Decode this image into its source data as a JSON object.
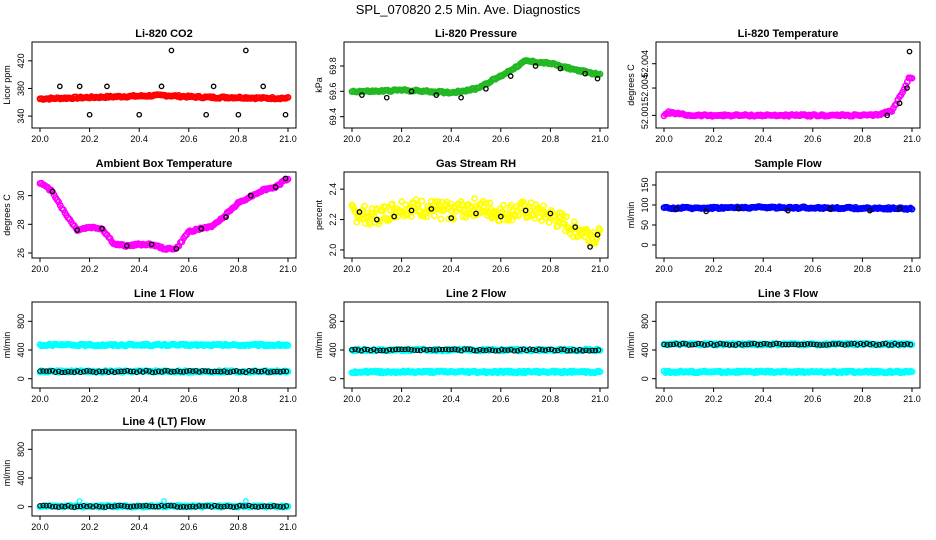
{
  "page_title": "SPL_070820  2.5 Min. Ave. Diagnostics",
  "chart_data": [
    {
      "type": "scatter",
      "title": "Li-820 CO2",
      "xlabel": "",
      "ylabel": "Licor ppm",
      "xlim": [
        20.0,
        21.0
      ],
      "ylim": [
        330,
        440
      ],
      "xticks": [
        "20.0",
        "20.2",
        "20.4",
        "20.6",
        "20.8",
        "21.0"
      ],
      "yticks": [
        "340",
        "380",
        "420"
      ],
      "series": [
        {
          "name": "line averages",
          "color": "#ff0000",
          "style": "dense",
          "x": [
            20.0,
            20.1,
            20.2,
            20.3,
            20.4,
            20.5,
            20.6,
            20.7,
            20.8,
            20.9,
            21.0
          ],
          "y": [
            365,
            366,
            367,
            368,
            369,
            370,
            368,
            367,
            367,
            366,
            366
          ]
        },
        {
          "name": "reference",
          "color": "#000000",
          "style": "sparse",
          "x": [
            20.08,
            20.16,
            20.2,
            20.27,
            20.4,
            20.49,
            20.53,
            20.67,
            20.7,
            20.8,
            20.83,
            20.9,
            20.99
          ],
          "y": [
            383,
            383,
            342,
            383,
            342,
            383,
            435,
            342,
            383,
            342,
            435,
            383,
            342
          ]
        }
      ]
    },
    {
      "type": "scatter",
      "title": "Li-820 Pressure",
      "xlabel": "",
      "ylabel": "kPa",
      "xlim": [
        20.0,
        21.0
      ],
      "ylim": [
        69.35,
        69.95
      ],
      "xticks": [
        "20.0",
        "20.2",
        "20.4",
        "20.6",
        "20.8",
        "21.0"
      ],
      "yticks": [
        "69.4",
        "69.6",
        "69.8"
      ],
      "series": [
        {
          "name": "line averages",
          "color": "#22b822",
          "style": "dense",
          "x": [
            20.0,
            20.1,
            20.2,
            20.3,
            20.4,
            20.5,
            20.6,
            20.7,
            20.8,
            20.9,
            21.0
          ],
          "y": [
            69.6,
            69.6,
            69.61,
            69.6,
            69.59,
            69.62,
            69.72,
            69.84,
            69.82,
            69.77,
            69.73
          ]
        },
        {
          "name": "reference",
          "color": "#000000",
          "style": "sparse",
          "x": [
            20.04,
            20.14,
            20.24,
            20.34,
            20.44,
            20.54,
            20.64,
            20.74,
            20.84,
            20.94,
            20.99
          ],
          "y": [
            69.57,
            69.55,
            69.6,
            69.57,
            69.55,
            69.62,
            69.72,
            69.8,
            69.78,
            69.74,
            69.7
          ]
        }
      ]
    },
    {
      "type": "scatter",
      "title": "Li-820 Temperature",
      "xlabel": "",
      "ylabel": "degrees C",
      "xlim": [
        20.0,
        21.0
      ],
      "ylim": [
        52.0005,
        52.0055
      ],
      "xticks": [
        "20.0",
        "20.2",
        "20.4",
        "20.6",
        "20.8",
        "21.0"
      ],
      "yticks": [
        "52.001",
        "52.004",
        "52.004"
      ],
      "series": [
        {
          "name": "line averages",
          "color": "#ff00ff",
          "style": "dense",
          "x": [
            20.0,
            20.02,
            20.1,
            20.3,
            20.5,
            20.7,
            20.85,
            20.92,
            20.96,
            20.99
          ],
          "y": [
            52.001,
            52.0012,
            52.001,
            52.001,
            52.001,
            52.001,
            52.001,
            52.0013,
            52.0025,
            52.0035
          ]
        },
        {
          "name": "reference",
          "color": "#000000",
          "style": "sparse",
          "x": [
            20.9,
            20.95,
            20.98,
            20.99
          ],
          "y": [
            52.001,
            52.0018,
            52.0028,
            52.0052
          ]
        }
      ]
    },
    {
      "type": "scatter",
      "title": "Ambient Box Temperature",
      "xlabel": "",
      "ylabel": "degrees C",
      "xlim": [
        20.0,
        21.0
      ],
      "ylim": [
        26,
        31.3
      ],
      "xticks": [
        "20.0",
        "20.2",
        "20.4",
        "20.6",
        "20.8",
        "21.0"
      ],
      "yticks": [
        "26",
        "28",
        "30"
      ],
      "series": [
        {
          "name": "line averages",
          "color": "#ff00ff",
          "style": "dense",
          "x": [
            20.0,
            20.05,
            20.1,
            20.15,
            20.2,
            20.25,
            20.3,
            20.35,
            20.4,
            20.45,
            20.5,
            20.55,
            20.6,
            20.7,
            20.8,
            20.9,
            20.95,
            21.0
          ],
          "y": [
            30.9,
            30.3,
            28.8,
            27.6,
            27.8,
            27.7,
            26.6,
            26.5,
            26.6,
            26.6,
            26.3,
            26.3,
            27.5,
            27.9,
            29.5,
            30.4,
            30.6,
            31.2
          ]
        },
        {
          "name": "reference",
          "color": "#000000",
          "style": "sparse",
          "x": [
            20.05,
            20.15,
            20.25,
            20.35,
            20.45,
            20.55,
            20.65,
            20.75,
            20.85,
            20.95,
            20.99
          ],
          "y": [
            30.3,
            27.6,
            27.7,
            26.5,
            26.6,
            26.3,
            27.7,
            28.5,
            30.0,
            30.6,
            31.2
          ]
        }
      ]
    },
    {
      "type": "scatter",
      "title": "Gas Stream RH",
      "xlabel": "",
      "ylabel": "percent",
      "xlim": [
        20.0,
        21.0
      ],
      "ylim": [
        1.98,
        2.48
      ],
      "xticks": [
        "20.0",
        "20.2",
        "20.4",
        "20.6",
        "20.8",
        "21.0"
      ],
      "yticks": [
        "2.0",
        "2.2",
        "2.4"
      ],
      "series": [
        {
          "name": "line averages",
          "color": "#ffff00",
          "style": "scatter-band",
          "x": [
            20.0,
            20.1,
            20.2,
            20.3,
            20.4,
            20.5,
            20.6,
            20.7,
            20.8,
            20.9,
            21.0
          ],
          "y": [
            2.24,
            2.22,
            2.28,
            2.27,
            2.26,
            2.28,
            2.24,
            2.26,
            2.22,
            2.14,
            2.08
          ]
        },
        {
          "name": "reference",
          "color": "#000000",
          "style": "sparse",
          "x": [
            20.03,
            20.1,
            20.17,
            20.24,
            20.32,
            20.4,
            20.5,
            20.6,
            20.7,
            20.8,
            20.9,
            20.96,
            20.99
          ],
          "y": [
            2.25,
            2.2,
            2.22,
            2.26,
            2.27,
            2.21,
            2.24,
            2.22,
            2.26,
            2.24,
            2.15,
            2.02,
            2.1
          ]
        }
      ]
    },
    {
      "type": "scatter",
      "title": "Sample Flow",
      "xlabel": "",
      "ylabel": "ml/min",
      "xlim": [
        20.0,
        21.0
      ],
      "ylim": [
        -20,
        170
      ],
      "xticks": [
        "20.0",
        "20.2",
        "20.4",
        "20.6",
        "20.8",
        "21.0"
      ],
      "yticks": [
        "0",
        "50",
        "100",
        "150"
      ],
      "series": [
        {
          "name": "line averages",
          "color": "#0000ff",
          "style": "dense",
          "x": [
            20.0,
            20.2,
            20.4,
            20.6,
            20.8,
            21.0
          ],
          "y": [
            92,
            93,
            94,
            93,
            92,
            91
          ]
        },
        {
          "name": "reference",
          "color": "#000000",
          "style": "sparse",
          "x": [
            20.05,
            20.17,
            20.3,
            20.5,
            20.67,
            20.83,
            20.95
          ],
          "y": [
            90,
            84,
            91,
            86,
            90,
            86,
            90
          ]
        }
      ]
    },
    {
      "type": "scatter",
      "title": "Line 1 Flow",
      "xlabel": "",
      "ylabel": "ml/min",
      "xlim": [
        20.0,
        21.0
      ],
      "ylim": [
        -60,
        1000
      ],
      "xticks": [
        "20.0",
        "20.2",
        "20.4",
        "20.6",
        "20.8",
        "21.0"
      ],
      "yticks": [
        "0",
        "400",
        "800"
      ],
      "series": [
        {
          "name": "flow high",
          "color": "#00ffff",
          "style": "dense",
          "x": [
            20.0,
            20.2,
            20.4,
            20.6,
            20.8,
            21.0
          ],
          "y": [
            470,
            470,
            470,
            470,
            470,
            470
          ]
        },
        {
          "name": "flow low",
          "color": "#00ffff",
          "style": "dense",
          "x": [
            20.0,
            20.2,
            20.4,
            20.6,
            20.8,
            21.0
          ],
          "y": [
            100,
            100,
            100,
            100,
            100,
            100
          ]
        },
        {
          "name": "reference",
          "color": "#000000",
          "style": "dense-rings",
          "x": [
            20.0,
            20.2,
            20.4,
            20.6,
            20.8,
            21.0
          ],
          "y": [
            100,
            100,
            100,
            100,
            100,
            100
          ]
        }
      ]
    },
    {
      "type": "scatter",
      "title": "Line 2 Flow",
      "xlabel": "",
      "ylabel": "ml/min",
      "xlim": [
        20.0,
        21.0
      ],
      "ylim": [
        -60,
        1000
      ],
      "xticks": [
        "20.0",
        "20.2",
        "20.4",
        "20.6",
        "20.8",
        "21.0"
      ],
      "yticks": [
        "0",
        "400",
        "800"
      ],
      "series": [
        {
          "name": "flow high",
          "color": "#00ffff",
          "style": "dense",
          "x": [
            20.0,
            20.2,
            20.4,
            20.6,
            20.8,
            21.0
          ],
          "y": [
            400,
            400,
            400,
            400,
            400,
            400
          ]
        },
        {
          "name": "flow low",
          "color": "#00ffff",
          "style": "dense",
          "x": [
            20.0,
            20.2,
            20.4,
            20.6,
            20.8,
            21.0
          ],
          "y": [
            95,
            95,
            95,
            95,
            95,
            95
          ]
        },
        {
          "name": "reference",
          "color": "#000000",
          "style": "dense-rings",
          "x": [
            20.0,
            20.2,
            20.4,
            20.6,
            20.8,
            21.0
          ],
          "y": [
            400,
            400,
            400,
            400,
            400,
            400
          ]
        }
      ]
    },
    {
      "type": "scatter",
      "title": "Line 3 Flow",
      "xlabel": "",
      "ylabel": "ml/min",
      "xlim": [
        20.0,
        21.0
      ],
      "ylim": [
        -60,
        1000
      ],
      "xticks": [
        "20.0",
        "20.2",
        "20.4",
        "20.6",
        "20.8",
        "21.0"
      ],
      "yticks": [
        "0",
        "400",
        "800"
      ],
      "series": [
        {
          "name": "flow high",
          "color": "#00ffff",
          "style": "dense",
          "x": [
            20.0,
            20.2,
            20.4,
            20.6,
            20.8,
            21.0
          ],
          "y": [
            480,
            480,
            480,
            480,
            480,
            480
          ]
        },
        {
          "name": "flow low",
          "color": "#00ffff",
          "style": "dense",
          "x": [
            20.0,
            20.2,
            20.4,
            20.6,
            20.8,
            21.0
          ],
          "y": [
            95,
            95,
            95,
            95,
            95,
            95
          ]
        },
        {
          "name": "reference",
          "color": "#000000",
          "style": "dense-rings",
          "x": [
            20.0,
            20.2,
            20.4,
            20.6,
            20.8,
            21.0
          ],
          "y": [
            480,
            480,
            480,
            480,
            480,
            480
          ]
        }
      ]
    },
    {
      "type": "scatter",
      "title": "Line 4 (LT) Flow",
      "xlabel": "",
      "ylabel": "ml/min",
      "xlim": [
        20.0,
        21.0
      ],
      "ylim": [
        -60,
        1000
      ],
      "xticks": [
        "20.0",
        "20.2",
        "20.4",
        "20.6",
        "20.8",
        "21.0"
      ],
      "yticks": [
        "0",
        "400",
        "800"
      ],
      "series": [
        {
          "name": "flow",
          "color": "#00ffff",
          "style": "dense",
          "x": [
            20.0,
            20.2,
            20.4,
            20.6,
            20.8,
            21.0
          ],
          "y": [
            5,
            5,
            5,
            5,
            5,
            5
          ]
        },
        {
          "name": "reference",
          "color": "#000000",
          "style": "dense-rings",
          "x": [
            20.0,
            20.2,
            20.4,
            20.6,
            20.8,
            21.0
          ],
          "y": [
            5,
            5,
            5,
            5,
            5,
            5
          ]
        },
        {
          "name": "spikes",
          "color": "#00ffff",
          "style": "sparse",
          "x": [
            20.16,
            20.5,
            20.83
          ],
          "y": [
            80,
            80,
            80
          ]
        }
      ]
    }
  ]
}
